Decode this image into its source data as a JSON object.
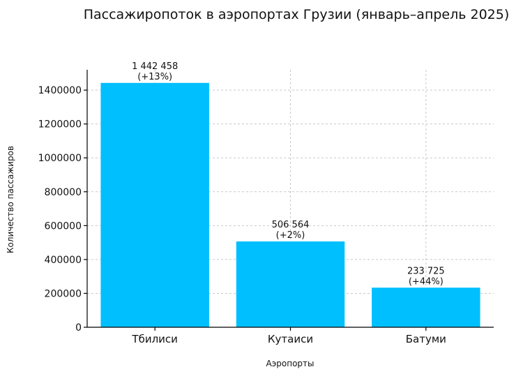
{
  "chart_data": {
    "type": "bar",
    "title": "Пассажиропоток в аэропортах Грузии (январь–апрель 2025)",
    "xlabel": "Аэропорты",
    "ylabel": "Количество пассажиров",
    "categories": [
      "Тбилиси",
      "Кутаиси",
      "Батуми"
    ],
    "values": [
      1442458,
      506564,
      233725
    ],
    "value_labels": [
      "1 442 458",
      "506 564",
      "233 725"
    ],
    "change_labels": [
      "(+13%)",
      "(+2%)",
      "(+44%)"
    ],
    "ylim": [
      0,
      1520000
    ],
    "yticks": [
      0,
      200000,
      400000,
      600000,
      800000,
      1000000,
      1200000,
      1400000
    ],
    "ytick_labels": [
      "0",
      "200000",
      "400000",
      "600000",
      "800000",
      "1000000",
      "1200000",
      "1400000"
    ],
    "bar_color": "#00bfff",
    "grid": true
  }
}
